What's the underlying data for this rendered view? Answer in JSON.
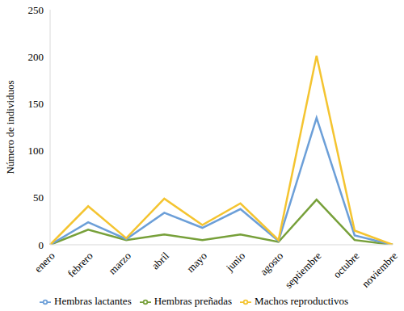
{
  "chart_data": {
    "type": "line",
    "y_label": "Número de individuos",
    "categories": [
      "enero",
      "febrero",
      "marzo",
      "abril",
      "mayo",
      "junio",
      "agosto",
      "septiembre",
      "octubre",
      "noviembre"
    ],
    "series": [
      {
        "name": "Hembras preñadas",
        "color": "#77A03A",
        "values": [
          0,
          16,
          5,
          11,
          5,
          11,
          3,
          48,
          5,
          0
        ]
      },
      {
        "name": "Hembras lactantes",
        "color": "#6C9FD8",
        "values": [
          0,
          24,
          6,
          34,
          18,
          38,
          4,
          135,
          10,
          0
        ]
      },
      {
        "name": "Machos reproductivos",
        "color": "#F4C430",
        "values": [
          0,
          41,
          7,
          49,
          21,
          44,
          5,
          201,
          15,
          0
        ]
      }
    ],
    "ylim": [
      0,
      250
    ],
    "yticks": [
      0,
      50,
      100,
      150,
      200,
      250
    ],
    "grid": false,
    "legend": "bottom"
  }
}
